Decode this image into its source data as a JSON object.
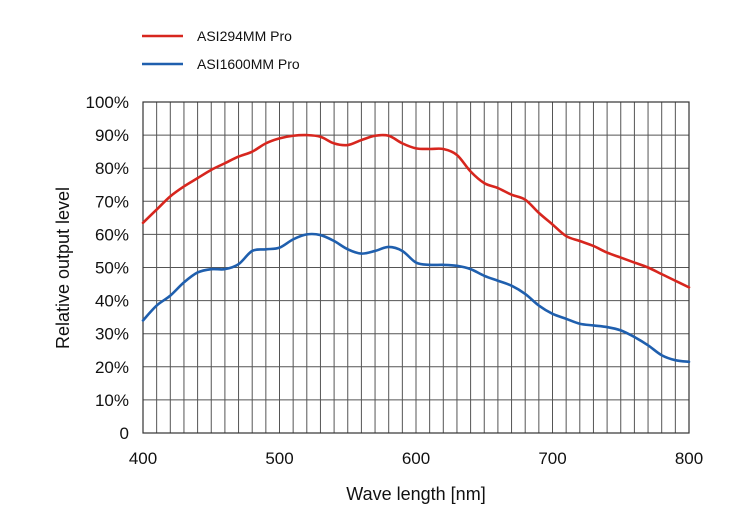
{
  "chart_data": {
    "type": "line",
    "title": "",
    "xlabel": "Wave length [nm]",
    "ylabel": "Relative output level",
    "xlim": [
      400,
      800
    ],
    "ylim": [
      0,
      100
    ],
    "x_ticks": [
      "400",
      "500",
      "600",
      "700",
      "800"
    ],
    "y_ticks": [
      "0",
      "10%",
      "20%",
      "30%",
      "40%",
      "50%",
      "60%",
      "70%",
      "80%",
      "90%",
      "100%"
    ],
    "grid": true,
    "legend_position": "top-left",
    "series": [
      {
        "name": "ASI294MM Pro",
        "color": "#d7261e",
        "x": [
          400,
          410,
          420,
          430,
          440,
          450,
          460,
          470,
          480,
          490,
          500,
          510,
          520,
          530,
          540,
          550,
          560,
          570,
          580,
          590,
          600,
          610,
          620,
          630,
          640,
          650,
          660,
          670,
          680,
          690,
          700,
          710,
          720,
          730,
          740,
          750,
          760,
          770,
          780,
          790,
          800
        ],
        "values": [
          63.5,
          67.5,
          71.5,
          74.5,
          77,
          79.5,
          81.5,
          83.5,
          85,
          87.5,
          89,
          89.8,
          90,
          89.5,
          87.5,
          87,
          88.5,
          89.8,
          89.8,
          87.5,
          86,
          85.8,
          85.8,
          84,
          79,
          75.5,
          74,
          72,
          70.5,
          66.5,
          63,
          59.5,
          58,
          56.5,
          54.5,
          53,
          51.5,
          50,
          48,
          46,
          44
        ]
      },
      {
        "name": "ASI1600MM Pro",
        "color": "#1f5fae",
        "x": [
          400,
          410,
          420,
          430,
          440,
          450,
          460,
          470,
          480,
          490,
          500,
          510,
          520,
          530,
          540,
          550,
          560,
          570,
          580,
          590,
          600,
          610,
          620,
          630,
          640,
          650,
          660,
          670,
          680,
          690,
          700,
          710,
          720,
          730,
          740,
          750,
          760,
          770,
          780,
          790,
          800
        ],
        "values": [
          34,
          38.5,
          41.5,
          45.5,
          48.5,
          49.5,
          49.5,
          51,
          55,
          55.5,
          56,
          58.5,
          60,
          59.8,
          58,
          55.5,
          54.2,
          55,
          56.2,
          55,
          51.5,
          50.8,
          50.8,
          50.5,
          49.5,
          47.5,
          46,
          44.5,
          42,
          38.5,
          36,
          34.5,
          33,
          32.5,
          32,
          31,
          29,
          26.5,
          23.5,
          22,
          21.5
        ]
      }
    ]
  }
}
